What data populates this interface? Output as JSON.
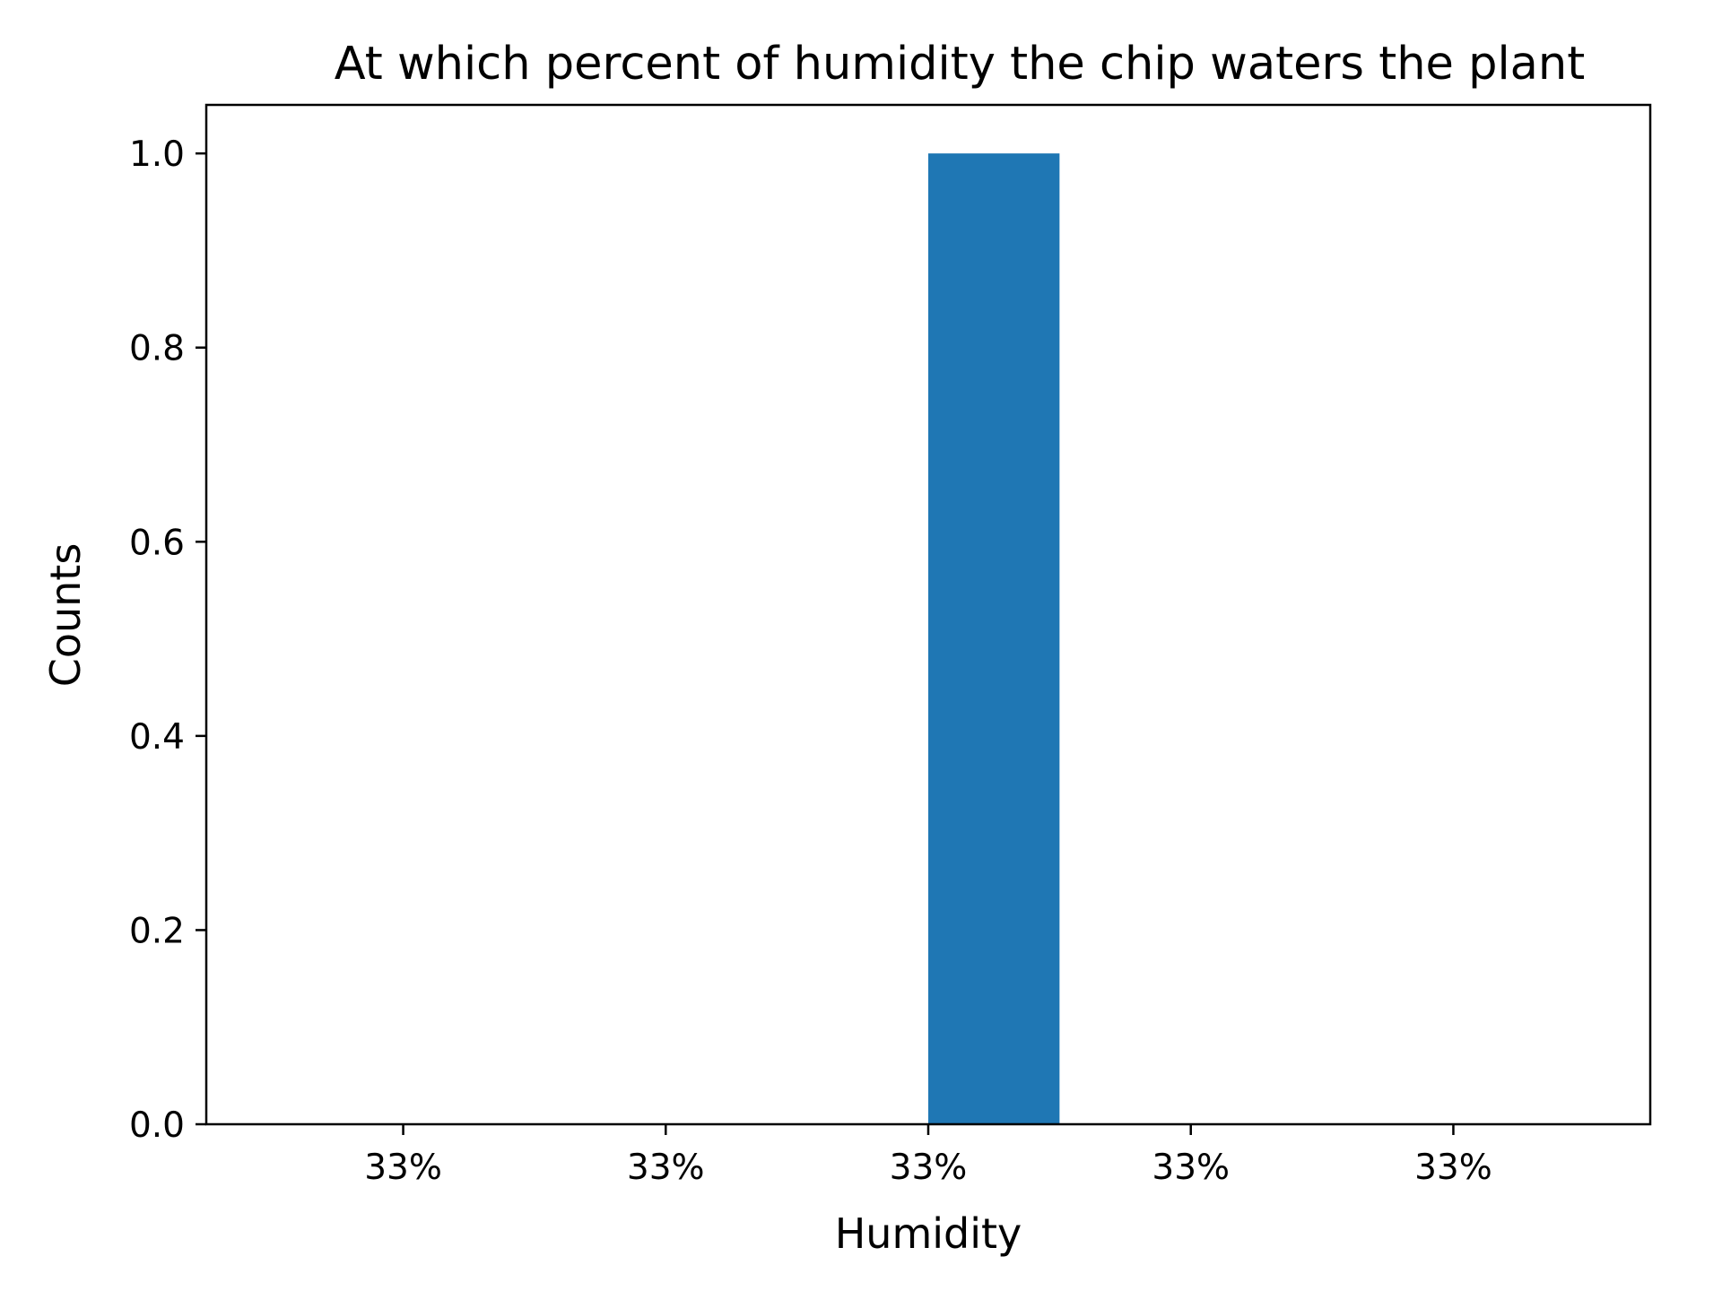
{
  "chart_data": {
    "type": "bar",
    "title": "At which percent of humidity the chip waters the plant",
    "xlabel": "Humidity",
    "ylabel": "Counts",
    "x_tick_labels": [
      "33%",
      "33%",
      "33%",
      "33%",
      "33%"
    ],
    "x_ticks": [
      33.02,
      33.04,
      33.06,
      33.08,
      33.1
    ],
    "xlim": [
      33.005,
      33.115
    ],
    "y_ticks": [
      "0.0",
      "0.2",
      "0.4",
      "0.6",
      "0.8",
      "1.0"
    ],
    "y_tick_values": [
      0,
      0.2,
      0.4,
      0.6,
      0.8,
      1.0
    ],
    "ylim": [
      0,
      1.05
    ],
    "bars": [
      {
        "x_start": 33.06,
        "x_end": 33.07,
        "value": 1
      }
    ],
    "bar_color": "#1f77b4",
    "grid": false,
    "legend": false
  }
}
